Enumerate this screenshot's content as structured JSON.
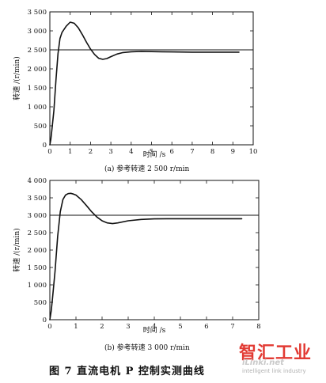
{
  "chart_data": [
    {
      "type": "line",
      "subcaption": "(a)  参考转速  2 500 r/min",
      "xlabel": "时间 /s",
      "ylabel": "转速 /(r/min)",
      "xlim": [
        0,
        10
      ],
      "ylim": [
        0,
        3500
      ],
      "xticks": [
        0,
        1,
        2,
        3,
        4,
        5,
        6,
        7,
        8,
        9,
        10
      ],
      "yticks": [
        0,
        500,
        1000,
        1500,
        2000,
        2500,
        3000,
        3500
      ],
      "ytick_labels": [
        "0",
        "500",
        "1 000",
        "1 500",
        "2 000",
        "2 500",
        "3 000",
        "3 500"
      ],
      "grid": false,
      "reference": 2500,
      "series": [
        {
          "x": [
            0,
            0.05,
            0.1,
            0.2,
            0.3,
            0.4,
            0.5,
            0.6,
            0.8,
            1.0,
            1.2,
            1.4,
            1.6,
            1.8,
            2.0,
            2.2,
            2.4,
            2.6,
            2.8,
            3.0,
            3.3,
            3.6,
            4.0,
            4.5,
            5.0,
            5.5,
            6.0,
            7.0,
            8.0,
            9.3
          ],
          "y": [
            0,
            150,
            400,
            900,
            1700,
            2400,
            2800,
            2960,
            3120,
            3230,
            3200,
            3080,
            2900,
            2700,
            2520,
            2380,
            2280,
            2250,
            2270,
            2320,
            2390,
            2430,
            2450,
            2460,
            2455,
            2450,
            2445,
            2440,
            2440,
            2440
          ]
        }
      ]
    },
    {
      "type": "line",
      "subcaption": "(b)  参考转速  3 000 r/min",
      "xlabel": "时间 /s",
      "ylabel": "转速 /(r/min)",
      "xlim": [
        0,
        8
      ],
      "ylim": [
        0,
        4000
      ],
      "xticks": [
        0,
        1,
        2,
        3,
        4,
        5,
        6,
        7,
        8
      ],
      "yticks": [
        0,
        500,
        1000,
        1500,
        2000,
        2500,
        3000,
        3500,
        4000
      ],
      "ytick_labels": [
        "0",
        "500",
        "1 000",
        "1 500",
        "2 000",
        "2 500",
        "3 000",
        "3 500",
        "4 000"
      ],
      "grid": false,
      "reference": 3000,
      "series": [
        {
          "x": [
            0,
            0.05,
            0.1,
            0.2,
            0.3,
            0.4,
            0.5,
            0.6,
            0.7,
            0.8,
            0.9,
            1.0,
            1.2,
            1.4,
            1.6,
            1.8,
            2.0,
            2.2,
            2.4,
            2.6,
            3.0,
            3.5,
            4.0,
            4.5,
            5.0,
            6.0,
            7.0,
            7.35
          ],
          "y": [
            0,
            250,
            600,
            1400,
            2400,
            3100,
            3450,
            3580,
            3620,
            3630,
            3610,
            3580,
            3450,
            3280,
            3100,
            2950,
            2840,
            2780,
            2760,
            2780,
            2840,
            2880,
            2895,
            2900,
            2900,
            2900,
            2900,
            2900
          ]
        }
      ]
    }
  ],
  "figure": {
    "caption": "图 7    直流电机 P 控制实测曲线"
  },
  "watermark": {
    "title": "智汇工业",
    "url": "iLinki.net",
    "subtitle": "intelligent link industry"
  }
}
